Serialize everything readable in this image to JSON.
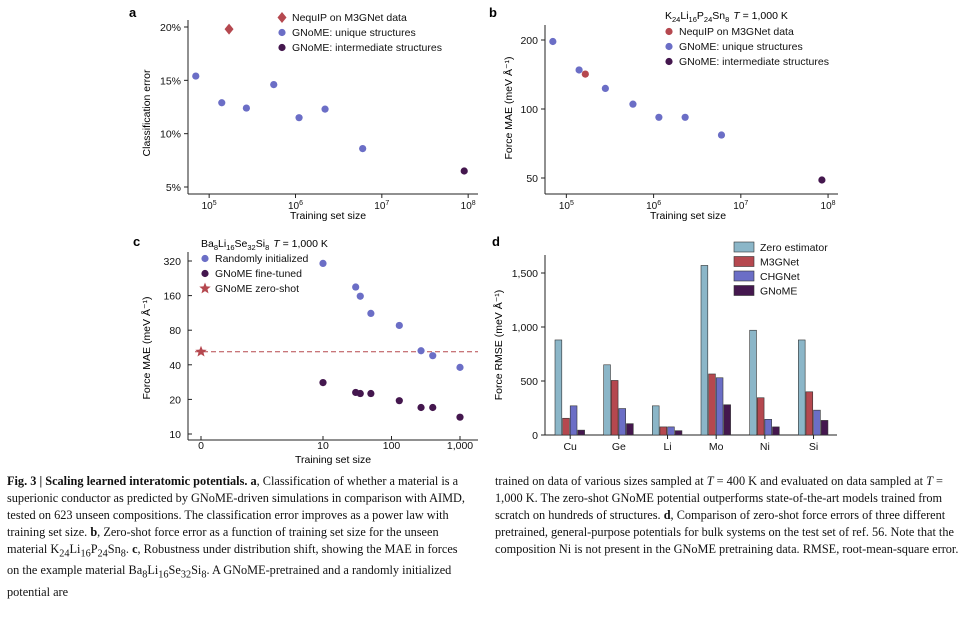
{
  "panels": {
    "a": {
      "letter": "a",
      "ylabel": "Classification error",
      "xlabel": "Training set size"
    },
    "b": {
      "letter": "b",
      "title_prefix": "K",
      "title_sub1": "24",
      "title_mid1": "Li",
      "title_sub2": "16",
      "title_mid2": "P",
      "title_sub3": "24",
      "title_mid3": "Sn",
      "title_sub4": "8",
      "title_T": "T",
      "title_suffix": " = 1,000 K",
      "ylabel": "Force MAE (meV Å⁻¹)",
      "xlabel": "Training set size"
    },
    "c": {
      "letter": "c",
      "title_prefix": "Ba",
      "title_sub1": "8",
      "title_mid1": "Li",
      "title_sub2": "16",
      "title_mid2": "Se",
      "title_sub3": "32",
      "title_mid3": "Si",
      "title_sub4": "8",
      "title_T": "T",
      "title_suffix": " = 1,000 K",
      "ylabel": "Force MAE (meV Å⁻¹)",
      "xlabel": "Training set size"
    },
    "d": {
      "letter": "d",
      "ylabel": "Force RMSE (meV Å⁻¹)"
    }
  },
  "chart_data": [
    {
      "panel": "a",
      "type": "scatter",
      "xscale": "log",
      "xlim": [
        60000,
        130000000
      ],
      "ylim": [
        5,
        20
      ],
      "xticks": [
        {
          "v": 100000,
          "base": "10",
          "exp": "5"
        },
        {
          "v": 1000000,
          "base": "10",
          "exp": "6"
        },
        {
          "v": 10000000,
          "base": "10",
          "exp": "7"
        },
        {
          "v": 100000000,
          "base": "10",
          "exp": "8"
        }
      ],
      "yticks": [
        {
          "v": 5,
          "label": "5%"
        },
        {
          "v": 10,
          "label": "10%"
        },
        {
          "v": 15,
          "label": "15%"
        },
        {
          "v": 20,
          "label": "20%"
        }
      ],
      "legend": {
        "placement": "top-right"
      },
      "series": [
        {
          "name": "NequIP on M3GNet data",
          "marker": "diamond",
          "color": "#b5484f",
          "points": [
            [
              170000,
              19.8
            ]
          ]
        },
        {
          "name": "GNoME: unique structures",
          "marker": "circle",
          "color": "#6b6ec6",
          "points": [
            [
              70000,
              15.4
            ],
            [
              140000,
              12.9
            ],
            [
              270000,
              12.4
            ],
            [
              560000,
              14.6
            ],
            [
              1100000,
              11.5
            ],
            [
              2200000,
              12.3
            ],
            [
              6000000,
              8.6
            ]
          ]
        },
        {
          "name": "GNoME: intermediate structures",
          "marker": "circle",
          "color": "#44174e",
          "points": [
            [
              90000000,
              6.5
            ]
          ]
        }
      ]
    },
    {
      "panel": "b",
      "type": "scatter",
      "xscale": "log",
      "yscale": "log",
      "xlim": [
        60000,
        130000000
      ],
      "ylim": [
        45,
        230
      ],
      "xticks": [
        {
          "v": 100000,
          "base": "10",
          "exp": "5"
        },
        {
          "v": 1000000,
          "base": "10",
          "exp": "6"
        },
        {
          "v": 10000000,
          "base": "10",
          "exp": "7"
        },
        {
          "v": 100000000,
          "base": "10",
          "exp": "8"
        }
      ],
      "yticks": [
        {
          "v": 50,
          "label": "50"
        },
        {
          "v": 100,
          "label": "100"
        },
        {
          "v": 200,
          "label": "200"
        }
      ],
      "legend": {
        "placement": "top-right"
      },
      "series": [
        {
          "name": "NequIP on M3GNet data",
          "marker": "circle",
          "color": "#b5484f",
          "points": [
            [
              165000,
              142
            ]
          ]
        },
        {
          "name": "GNoME: unique structures",
          "marker": "circle",
          "color": "#6b6ec6",
          "points": [
            [
              70000,
              197
            ],
            [
              140000,
              148
            ],
            [
              280000,
              123
            ],
            [
              580000,
              105
            ],
            [
              1150000,
              92
            ],
            [
              2300000,
              92
            ],
            [
              6000000,
              77
            ]
          ]
        },
        {
          "name": "GNoME: intermediate structures",
          "marker": "circle",
          "color": "#44174e",
          "points": [
            [
              85000000,
              49
            ]
          ]
        }
      ]
    },
    {
      "panel": "c",
      "type": "scatter",
      "xscale": "symlog",
      "yscale": "log",
      "xlim": [
        0,
        1400
      ],
      "ylim": [
        10,
        400
      ],
      "xticks": [
        {
          "v": 0,
          "label": "0"
        },
        {
          "v": 10,
          "label": "10"
        },
        {
          "v": 100,
          "label": "100"
        },
        {
          "v": 1000,
          "label": "1,000"
        }
      ],
      "yticks": [
        {
          "v": 10,
          "label": "10"
        },
        {
          "v": 20,
          "label": "20"
        },
        {
          "v": 40,
          "label": "40"
        },
        {
          "v": 80,
          "label": "80"
        },
        {
          "v": 160,
          "label": "160"
        },
        {
          "v": 320,
          "label": "320"
        }
      ],
      "reference_line": {
        "y": 52,
        "style": "dashed",
        "color": "#b5484f"
      },
      "legend": {
        "placement": "top-left"
      },
      "series": [
        {
          "name": "Randomly initialized",
          "marker": "circle",
          "color": "#6b6ec6",
          "points": [
            [
              10,
              305
            ],
            [
              30,
              190
            ],
            [
              35,
              158
            ],
            [
              50,
              112
            ],
            [
              130,
              88
            ],
            [
              270,
              53
            ],
            [
              400,
              48
            ],
            [
              1000,
              38
            ]
          ]
        },
        {
          "name": "GNoME fine-tuned",
          "marker": "circle",
          "color": "#44174e",
          "points": [
            [
              10,
              28
            ],
            [
              30,
              23
            ],
            [
              35,
              22.5
            ],
            [
              50,
              22.5
            ],
            [
              130,
              19.5
            ],
            [
              270,
              17
            ],
            [
              400,
              17
            ],
            [
              1000,
              14
            ]
          ]
        },
        {
          "name": "GNoME zero-shot",
          "marker": "star",
          "color": "#b5484f",
          "points": [
            [
              0,
              52
            ]
          ]
        }
      ]
    },
    {
      "panel": "d",
      "type": "bar",
      "categories": [
        "Cu",
        "Ge",
        "Li",
        "Mo",
        "Ni",
        "Si"
      ],
      "ylim": [
        0,
        1650
      ],
      "yticks": [
        {
          "v": 0,
          "label": "0"
        },
        {
          "v": 500,
          "label": "500"
        },
        {
          "v": 1000,
          "label": "1,000"
        },
        {
          "v": 1500,
          "label": "1,500"
        }
      ],
      "legend": {
        "placement": "top-right"
      },
      "series": [
        {
          "name": "Zero estimator",
          "color": "#8bb6c8",
          "values": [
            880,
            650,
            270,
            1570,
            970,
            880
          ]
        },
        {
          "name": "M3GNet",
          "color": "#b5484f",
          "values": [
            155,
            505,
            75,
            565,
            345,
            400
          ]
        },
        {
          "name": "CHGNet",
          "color": "#6b6ec6",
          "values": [
            270,
            245,
            75,
            530,
            145,
            230
          ]
        },
        {
          "name": "GNoME",
          "color": "#44174e",
          "values": [
            45,
            105,
            40,
            280,
            75,
            135
          ]
        }
      ]
    }
  ],
  "caption": {
    "left": {
      "fig_label": "Fig. 3 | Scaling learned interatomic potentials. ",
      "p1": "a",
      "t1": ", Classification of whether a material is a superionic conductor as predicted by GNoME-driven simulations in comparison with AIMD, tested on 623 unseen compositions. The classification error improves as a power law with training set size. ",
      "p2": "b",
      "t2a": ", Zero-shot force error as a function of training set size for the unseen material K",
      "s1": "24",
      "e1": "Li",
      "s2": "16",
      "e2": "P",
      "s3": "24",
      "e3": "Sn",
      "s4": "8",
      "t2b": ". ",
      "p3": "c",
      "t3a": ", Robustness under distribution shift, showing the MAE in forces on the example material Ba",
      "s5": "8",
      "e5": "Li",
      "s6": "16",
      "e6": "Se",
      "s7": "32",
      "e7": "Si",
      "s8": "8",
      "t3b": ". A GNoME-pretrained and a randomly initialized potential are"
    },
    "right": {
      "r1a": "trained on data of various sizes sampled at ",
      "T1": "T",
      "r1b": " = 400 K and evaluated on data sampled at ",
      "T2": "T",
      "r1c": " = 1,000 K. The zero-shot GNoME potential outperforms state-of-the-art models trained from scratch on hundreds of structures. ",
      "p4": "d",
      "r2": ", Comparison of zero-shot force errors of three different pretrained, general-purpose potentials for bulk systems on the test set of ref. 56. Note that the composition Ni is not present in the GNoME pretraining data. RMSE, root-mean-square error."
    }
  }
}
